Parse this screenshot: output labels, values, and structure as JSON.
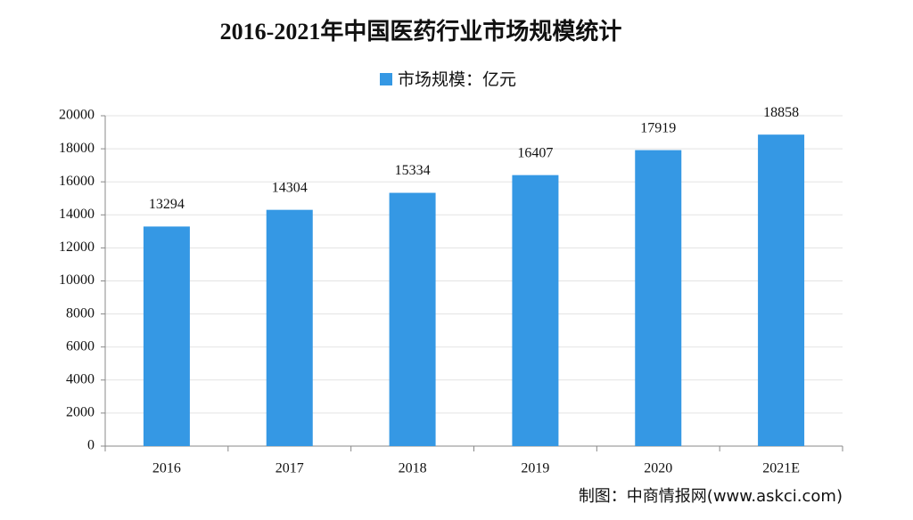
{
  "chart_data": {
    "type": "bar",
    "title": "2016-2021年中国医药行业市场规模统计",
    "categories": [
      "2016",
      "2017",
      "2018",
      "2019",
      "2020",
      "2021E"
    ],
    "series": [
      {
        "name": "市场规模：亿元",
        "color": "#3598e4",
        "values": [
          13294,
          14304,
          15334,
          16407,
          17919,
          18858
        ]
      }
    ],
    "ylim": [
      0,
      20000
    ],
    "yticks": [
      0,
      2000,
      4000,
      6000,
      8000,
      10000,
      12000,
      14000,
      16000,
      18000,
      20000
    ],
    "grid": true,
    "legend": "top",
    "source": "制图：中商情报网(www.askci.com)"
  }
}
